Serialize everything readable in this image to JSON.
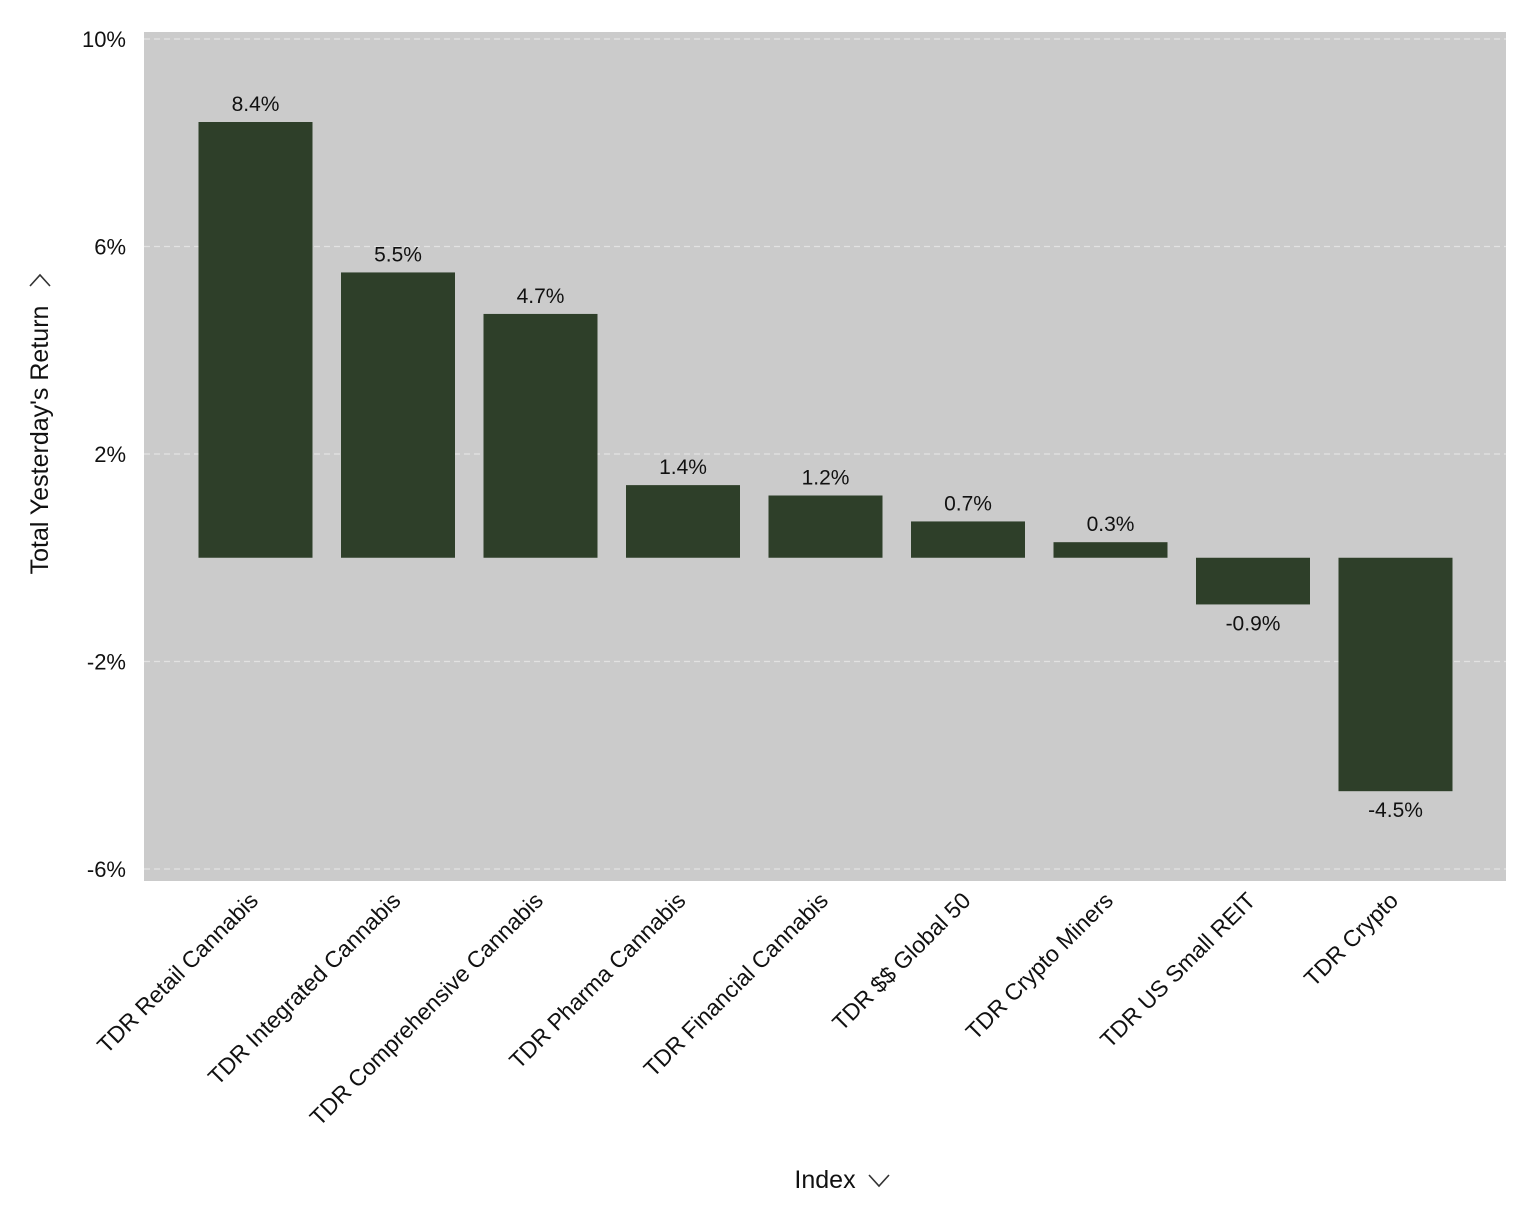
{
  "chart_data": {
    "type": "bar",
    "categories": [
      "TDR Retail Cannabis",
      "TDR Integrated Cannabis",
      "TDR Comprehensive Cannabis",
      "TDR Pharma Cannabis",
      "TDR Financial Cannabis",
      "TDR $$ Global 50",
      "TDR Crypto Miners",
      "TDR US Small REIT",
      "TDR Crypto"
    ],
    "values": [
      8.4,
      5.5,
      4.7,
      1.4,
      1.2,
      0.7,
      0.3,
      -0.9,
      -4.5
    ],
    "data_labels": [
      "8.4%",
      "5.5%",
      "4.7%",
      "1.4%",
      "1.2%",
      "0.7%",
      "0.3%",
      "-0.9%",
      "-4.5%"
    ],
    "xlabel": "Index",
    "ylabel": "Total Yesterday's Return",
    "ylim": [
      -6.2,
      10.1
    ],
    "yticks": [
      10,
      6,
      2,
      -2,
      -6
    ],
    "ytick_labels": [
      "10%",
      "6%",
      "2%",
      "-2%",
      "-6%"
    ],
    "grid": true,
    "legend": "none",
    "colors": {
      "bar": "#2e3f29",
      "plot_background": "#cbcbcb",
      "gridline": "#e2e2e2"
    },
    "icons": {
      "xlabel_icon": "chevron-down-icon",
      "ylabel_icon": "chevron-down-icon"
    }
  }
}
